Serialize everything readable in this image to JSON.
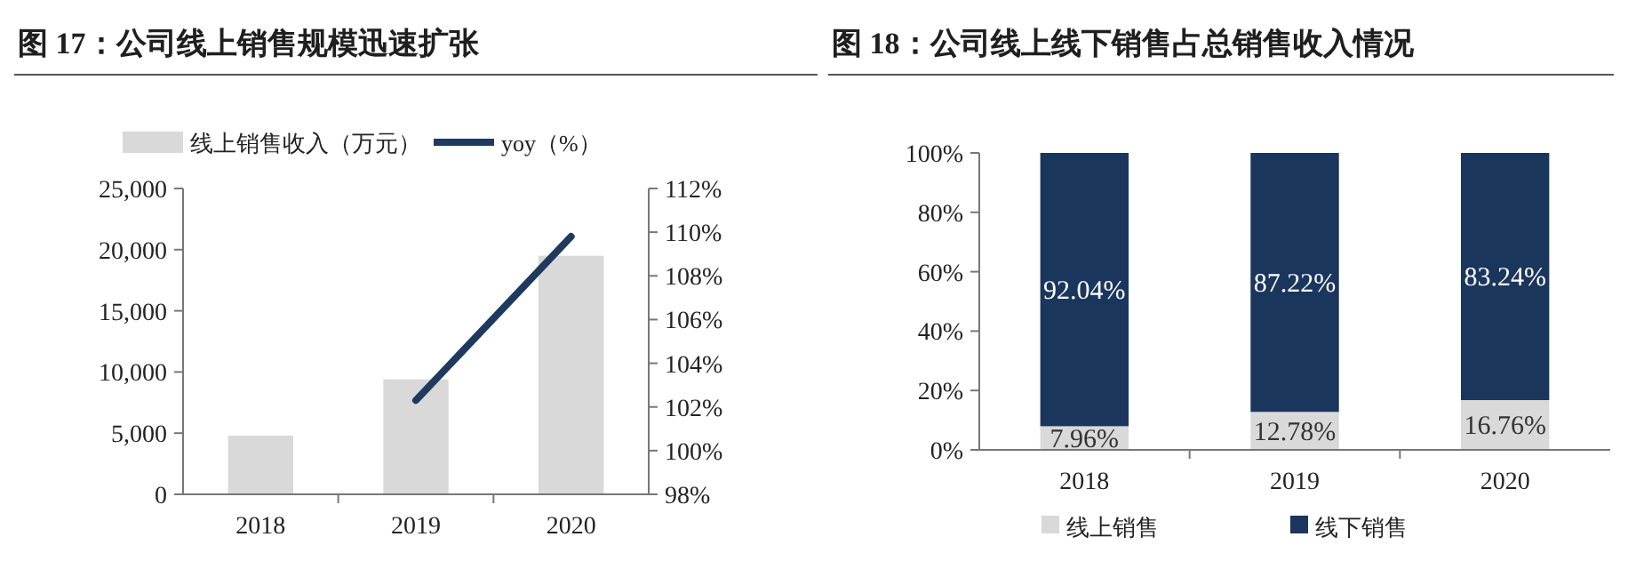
{
  "chart_data": [
    {
      "type": "bar",
      "title": "图 17：公司线上销售规模迅速扩张",
      "categories": [
        "2018",
        "2019",
        "2020"
      ],
      "series": [
        {
          "name": "线上销售收入（万元）",
          "color": "#d9d9d9",
          "values": [
            4800,
            9400,
            19500
          ]
        },
        {
          "name": "yoy（%）",
          "type": "line",
          "axis": "y2",
          "color": "#1f3a5f",
          "values": [
            null,
            102.3,
            109.8
          ]
        }
      ],
      "ylim": [
        0,
        25000
      ],
      "yticks": [
        0,
        {
          "value": 5000,
          "label": "5,000"
        },
        {
          "value": 10000,
          "label": "10,000"
        },
        {
          "value": 15000,
          "label": "15,000"
        },
        {
          "value": 20000,
          "label": "20,000"
        },
        {
          "value": 25000,
          "label": "25,000"
        }
      ],
      "y2lim": [
        98,
        112
      ],
      "y2ticks": [
        {
          "value": 98,
          "label": "98%"
        },
        {
          "value": 100,
          "label": "100%"
        },
        {
          "value": 102,
          "label": "102%"
        },
        {
          "value": 104,
          "label": "104%"
        },
        {
          "value": 106,
          "label": "106%"
        },
        {
          "value": 108,
          "label": "108%"
        },
        {
          "value": 110,
          "label": "110%"
        },
        {
          "value": 112,
          "label": "112%"
        }
      ],
      "grid": false,
      "legend": "top",
      "marker": "none",
      "line_style": "solid"
    },
    {
      "type": "bar",
      "title": "图 18：公司线上线下销售占总销售收入情况",
      "categories": [
        "2018",
        "2019",
        "2020"
      ],
      "stacked": true,
      "series": [
        {
          "name": "线上销售",
          "color": "#d9d9d9",
          "values": [
            7.96,
            12.78,
            16.76
          ],
          "value_labels": [
            "7.96%",
            "12.78%",
            "16.76%"
          ]
        },
        {
          "name": "线下销售",
          "color": "#1b365d",
          "values": [
            92.04,
            87.22,
            83.24
          ],
          "value_labels": [
            "92.04%",
            "87.22%",
            "83.24%"
          ]
        }
      ],
      "ylim": [
        0,
        100
      ],
      "yticks": [
        {
          "value": 0,
          "label": "0%"
        },
        {
          "value": 20,
          "label": "20%"
        },
        {
          "value": 40,
          "label": "40%"
        },
        {
          "value": 60,
          "label": "60%"
        },
        {
          "value": 80,
          "label": "80%"
        },
        {
          "value": 100,
          "label": "100%"
        }
      ],
      "grid": false,
      "legend": "bottom"
    }
  ]
}
